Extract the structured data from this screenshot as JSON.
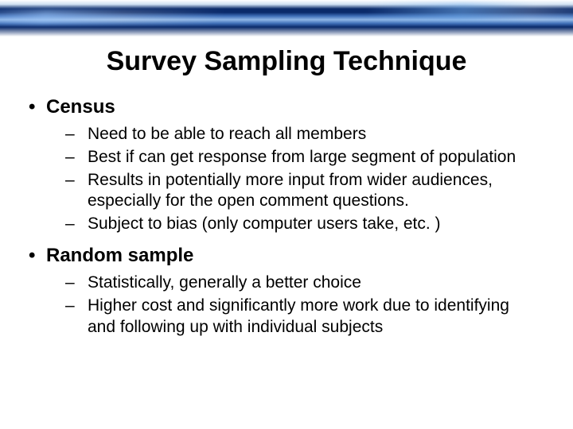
{
  "title": "Survey Sampling Technique",
  "sections": [
    {
      "heading": "Census",
      "items": [
        "Need to be able to reach all members",
        "Best if can get response from large segment of population",
        "Results in potentially more input from wider audiences, especially for the open comment questions.",
        "Subject to bias (only computer users take, etc. )"
      ]
    },
    {
      "heading": "Random sample",
      "items": [
        "Statistically, generally a better choice",
        "Higher cost and significantly more work due to identifying and following up with individual subjects"
      ]
    }
  ],
  "style": {
    "title_fontsize": 34,
    "b1_fontsize": 24,
    "b2_fontsize": 21,
    "text_color": "#000000",
    "background": "#ffffff",
    "banner_colors": [
      "#ffffff",
      "#cfe0f2",
      "#0a2a6a",
      "#3f6fb8",
      "#8fb6e6"
    ]
  }
}
